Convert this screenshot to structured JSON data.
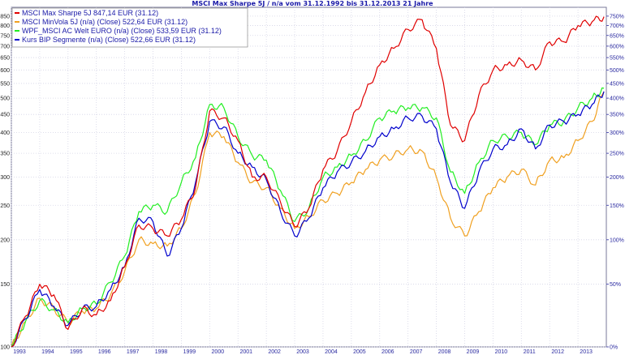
{
  "chart_data": {
    "type": "line",
    "title": "MSCI Max Sharpe 5J / n/a vom 31.12.1992 bis 31.12.2013 21 Jahre",
    "xlabel": "",
    "ylabel": "",
    "y_scale": "log",
    "ylim": [
      100,
      900
    ],
    "xlim": [
      "1993-01",
      "2014-01"
    ],
    "grid": true,
    "legend_position": "top-left",
    "x_ticks": [
      "1993",
      "1994",
      "1995",
      "1996",
      "1997",
      "1998",
      "1999",
      "2000",
      "2001",
      "2002",
      "2003",
      "2004",
      "2005",
      "2006",
      "2007",
      "2008",
      "2009",
      "2010",
      "2011",
      "2012",
      "2013"
    ],
    "y_ticks_left": [
      100,
      150,
      200,
      250,
      300,
      350,
      400,
      450,
      500,
      550,
      600,
      650,
      700,
      750,
      800,
      850
    ],
    "y_ticks_right": [
      "0%",
      "50%",
      "100%",
      "150%",
      "200%",
      "250%",
      "300%",
      "350%",
      "400%",
      "450%",
      "500%",
      "550%",
      "600%",
      "650%",
      "700%",
      "750%"
    ],
    "x": [
      "1993-01",
      "1993-07",
      "1994-01",
      "1994-07",
      "1995-01",
      "1995-07",
      "1996-01",
      "1996-07",
      "1997-01",
      "1997-07",
      "1998-01",
      "1998-07",
      "1999-01",
      "1999-07",
      "2000-01",
      "2000-07",
      "2001-01",
      "2001-07",
      "2002-01",
      "2002-07",
      "2003-01",
      "2003-07",
      "2004-01",
      "2004-07",
      "2005-01",
      "2005-07",
      "2006-01",
      "2006-07",
      "2007-01",
      "2007-07",
      "2008-01",
      "2008-07",
      "2009-01",
      "2009-07",
      "2010-01",
      "2010-07",
      "2011-01",
      "2011-07",
      "2012-01",
      "2012-07",
      "2013-01",
      "2013-07",
      "2013-12"
    ],
    "series": [
      {
        "name": "MSCI Max Sharpe 5J 847,14 EUR (31.12)",
        "color": "#e00000",
        "values": [
          100,
          122,
          150,
          140,
          112,
          128,
          123,
          135,
          168,
          220,
          215,
          205,
          228,
          280,
          460,
          440,
          380,
          300,
          300,
          255,
          218,
          245,
          315,
          355,
          430,
          520,
          620,
          690,
          780,
          830,
          690,
          420,
          380,
          510,
          600,
          620,
          640,
          600,
          720,
          720,
          800,
          820,
          847
        ]
      },
      {
        "name": "MSCI MinVola 5J (n/a) (Close) 522,64 EUR (31.12)",
        "color": "#f0a020",
        "values": [
          100,
          118,
          137,
          128,
          117,
          126,
          128,
          140,
          163,
          200,
          195,
          192,
          215,
          270,
          400,
          390,
          330,
          290,
          280,
          245,
          215,
          232,
          258,
          270,
          290,
          315,
          335,
          345,
          360,
          355,
          300,
          230,
          205,
          240,
          280,
          300,
          315,
          285,
          335,
          340,
          380,
          430,
          522
        ]
      },
      {
        "name": "WPF_MSCI AC Welt EURO (n/a) (Close) 533,59 EUR (31.12)",
        "color": "#22ee22",
        "values": [
          100,
          118,
          135,
          127,
          117,
          128,
          132,
          152,
          180,
          240,
          250,
          240,
          290,
          340,
          480,
          470,
          390,
          345,
          335,
          275,
          225,
          245,
          300,
          320,
          345,
          380,
          440,
          460,
          470,
          470,
          440,
          310,
          270,
          330,
          380,
          390,
          400,
          370,
          420,
          430,
          470,
          500,
          533
        ]
      },
      {
        "name": "Kurs BIP Segmente (n/a) (Close) 522,66 EUR (31.12)",
        "color": "#0000cc",
        "values": [
          100,
          120,
          145,
          130,
          115,
          128,
          130,
          145,
          168,
          230,
          225,
          180,
          215,
          290,
          430,
          415,
          350,
          320,
          295,
          240,
          205,
          230,
          280,
          310,
          330,
          355,
          390,
          410,
          440,
          445,
          410,
          290,
          245,
          310,
          360,
          370,
          410,
          360,
          420,
          430,
          450,
          480,
          522
        ]
      }
    ]
  }
}
